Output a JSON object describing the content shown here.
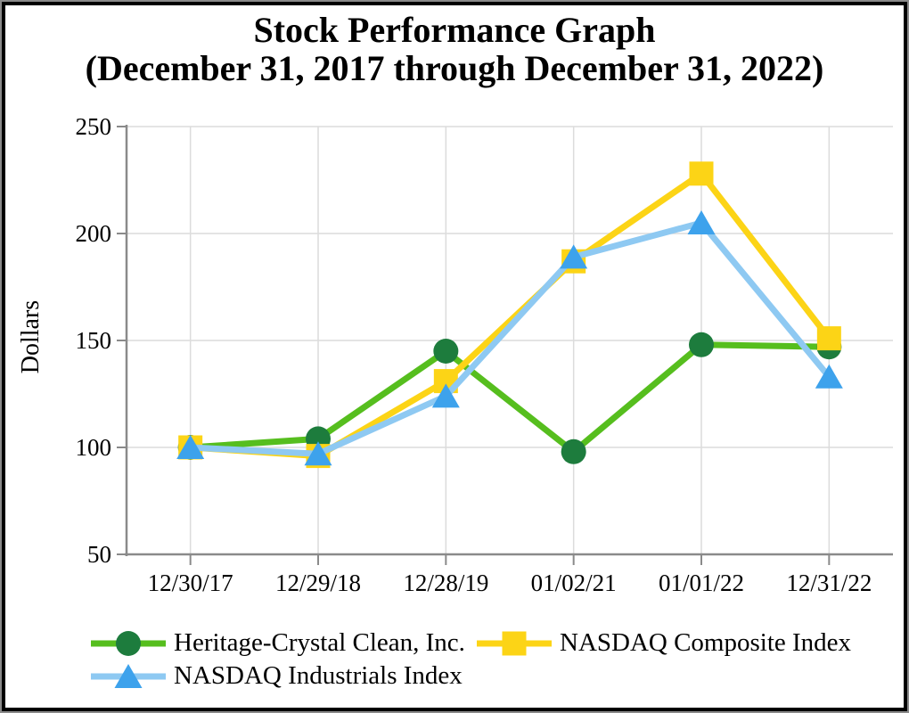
{
  "title": {
    "line1": "Stock Performance Graph",
    "line2": "(December 31, 2017 through December 31, 2022)"
  },
  "y_axis": {
    "label": "Dollars"
  },
  "chart_data": {
    "type": "line",
    "title": "Stock Performance Graph (December 31, 2017 through December 31, 2022)",
    "categories": [
      "12/30/17",
      "12/29/18",
      "12/28/19",
      "01/02/21",
      "01/01/22",
      "12/31/22"
    ],
    "series": [
      {
        "name": "Heritage-Crystal Clean, Inc.",
        "values": [
          100,
          104,
          145,
          98,
          148,
          147
        ],
        "marker": "circle",
        "line_color": "#56be1e",
        "marker_color": "#1d7c3d"
      },
      {
        "name": "NASDAQ Composite Index",
        "values": [
          100,
          96,
          131,
          187,
          228,
          151
        ],
        "marker": "square",
        "line_color": "#fcd416",
        "marker_color": "#fcd416"
      },
      {
        "name": "NASDAQ Industrials Index",
        "values": [
          100,
          97,
          124,
          189,
          205,
          133
        ],
        "marker": "triangle",
        "line_color": "#8ec9f2",
        "marker_color": "#3da2ec"
      }
    ],
    "xlabel": "",
    "ylabel": "Dollars",
    "ylim": [
      50,
      250
    ],
    "yticks": [
      50,
      100,
      150,
      200,
      250
    ],
    "grid": true,
    "grid_color": "#dcdcdc",
    "axis_color": "#8a8a8a",
    "tick_label_color": "#000000",
    "legend_position": "bottom"
  }
}
